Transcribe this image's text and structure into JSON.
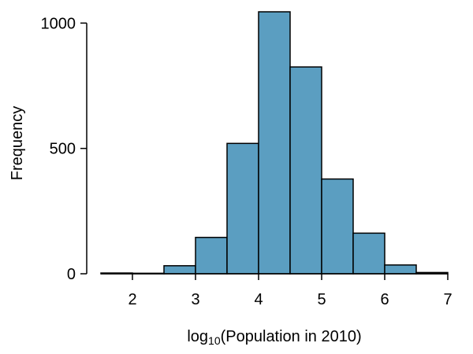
{
  "chart_data": {
    "type": "bar",
    "title": "",
    "xlabel": {
      "prefix": "log",
      "subscript": "10",
      "suffix": "(Population in 2010)"
    },
    "ylabel": "Frequency",
    "bin_edges": [
      1.5,
      2.0,
      2.5,
      3.0,
      3.5,
      4.0,
      4.5,
      5.0,
      5.5,
      6.0,
      6.5,
      7.0
    ],
    "values": [
      3,
      2,
      32,
      145,
      520,
      1045,
      825,
      378,
      162,
      35,
      5
    ],
    "xlim": [
      1.5,
      7
    ],
    "ylim": [
      0,
      1045
    ],
    "x_ticks": [
      "2",
      "3",
      "4",
      "5",
      "6",
      "7"
    ],
    "y_ticks": [
      "0",
      "500",
      "1000"
    ],
    "bar_color": "#5b9ec1",
    "edge_color": "#000000",
    "grid": false,
    "legend": "none"
  }
}
